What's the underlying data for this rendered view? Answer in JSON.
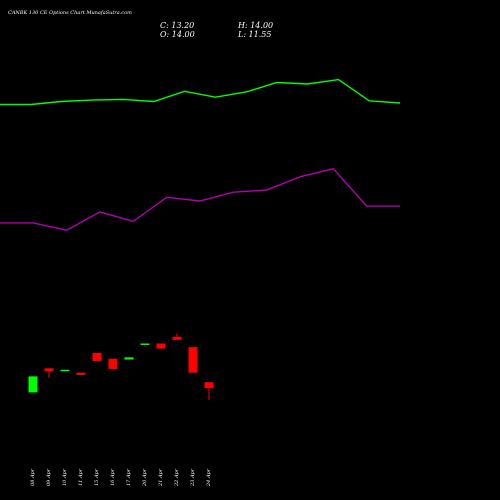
{
  "title": "CANBK 130  CE Options  Chart MunafaSutra.com",
  "ohlc": {
    "close_label": "C: 13.20",
    "open_label": "O: 14.00",
    "high_label": "H: 14.00",
    "low_label": "L: 11.55"
  },
  "colors": {
    "background": "#000000",
    "up": "#00ff00",
    "down": "#ff0000",
    "upper_line": "#00ff00",
    "lower_line": "#b000b0",
    "text": "#ffffff"
  },
  "chart_data": {
    "type": "candlestick",
    "dates": [
      "08 Apr",
      "09 Apr",
      "10 Apr",
      "11 Apr",
      "15 Apr",
      "16 Apr",
      "17 Apr",
      "20 Apr",
      "21 Apr",
      "22 Apr",
      "23 Apr",
      "24 Apr"
    ],
    "candles": [
      {
        "date": "08 Apr",
        "open": 12.6,
        "high": 14.8,
        "low": 12.6,
        "close": 14.8,
        "dir": "up"
      },
      {
        "date": "09 Apr",
        "open": 15.9,
        "high": 15.9,
        "low": 14.6,
        "close": 15.5,
        "dir": "down"
      },
      {
        "date": "10 Apr",
        "open": 15.7,
        "high": 15.7,
        "low": 15.7,
        "close": 15.7,
        "dir": "up"
      },
      {
        "date": "11 Apr",
        "open": 15.3,
        "high": 15.3,
        "low": 15.0,
        "close": 15.0,
        "dir": "down"
      },
      {
        "date": "15 Apr",
        "open": 18.0,
        "high": 18.0,
        "low": 16.9,
        "close": 16.9,
        "dir": "down"
      },
      {
        "date": "16 Apr",
        "open": 17.2,
        "high": 17.2,
        "low": 15.8,
        "close": 15.8,
        "dir": "down"
      },
      {
        "date": "17 Apr",
        "open": 17.1,
        "high": 17.4,
        "low": 17.1,
        "close": 17.4,
        "dir": "up"
      },
      {
        "date": "20 Apr",
        "open": 19.1,
        "high": 19.3,
        "low": 19.1,
        "close": 19.3,
        "dir": "up"
      },
      {
        "date": "21 Apr",
        "open": 19.3,
        "high": 19.3,
        "low": 18.6,
        "close": 18.6,
        "dir": "down"
      },
      {
        "date": "22 Apr",
        "open": 20.2,
        "high": 20.7,
        "low": 19.8,
        "close": 19.8,
        "dir": "down"
      },
      {
        "date": "23 Apr",
        "open": 18.8,
        "high": 18.8,
        "low": 15.3,
        "close": 15.3,
        "dir": "down"
      },
      {
        "date": "24 Apr",
        "open": 14.0,
        "high": 14.0,
        "low": 11.55,
        "close": 13.2,
        "dir": "down"
      }
    ],
    "upper_line": [
      52.0,
      52.0,
      52.4,
      52.6,
      52.7,
      52.4,
      53.8,
      53.0,
      53.7,
      55.0,
      54.8,
      55.4,
      52.5,
      52.2
    ],
    "lower_line": [
      35.8,
      35.8,
      34.8,
      37.3,
      36.0,
      39.3,
      38.8,
      40.0,
      40.3,
      42.1,
      43.2,
      38.1,
      38.1
    ],
    "ylim": [
      5,
      60
    ]
  }
}
